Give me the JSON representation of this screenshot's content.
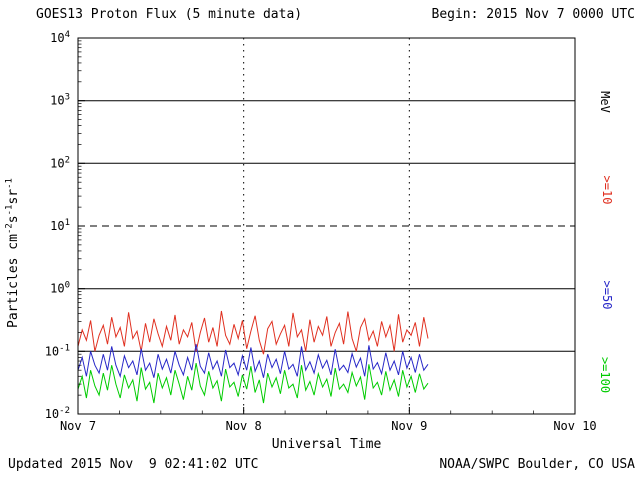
{
  "header": {
    "title": "GOES13 Proton Flux (5 minute data)",
    "begin": "Begin: 2015 Nov 7 0000 UTC"
  },
  "footer": {
    "updated": "Updated 2015 Nov  9 02:41:02 UTC",
    "credit": "NOAA/SWPC Boulder, CO USA"
  },
  "axes": {
    "x_title": "Universal Time",
    "unit": "MeV",
    "y_label": {
      "p1": "Particles cm",
      "s1": "-2",
      "p2": "s",
      "s2": "-1",
      "p3": "sr",
      "s3": "-1"
    }
  },
  "chart_data": {
    "type": "line",
    "title": "GOES13 Proton Flux (5 minute data)",
    "xlabel": "Universal Time",
    "ylabel": "Particles cm^-2 s^-1 sr^-1",
    "legend_position": "right-vertical",
    "background": "#ffffff",
    "x_axis": {
      "start": "2015 Nov 7 0000 UTC",
      "total_hours": 72,
      "tick_hours": [
        0,
        24,
        48,
        72
      ],
      "tick_labels": [
        "Nov 7",
        "Nov 8",
        "Nov 9",
        "Nov 10"
      ],
      "minor_tick_step_hours": 6,
      "dotted_gridline_hours": [
        24,
        48
      ]
    },
    "y_axis": {
      "scale": "log",
      "min": 0.01,
      "max": 10000,
      "tick_exponents": [
        4,
        3,
        2,
        1,
        0,
        -1,
        -2
      ],
      "solid_gridlines_at": [
        1000,
        100,
        1,
        0.1
      ],
      "dashed_gridline_at": 10
    },
    "data_end_hour": 50.7,
    "series": [
      {
        "name": ">=10 MeV proton flux",
        "label": ">=10",
        "color": "#e03020",
        "approx_range": [
          0.09,
          0.44
        ],
        "values": [
          0.12,
          0.22,
          0.15,
          0.31,
          0.1,
          0.18,
          0.26,
          0.13,
          0.35,
          0.17,
          0.24,
          0.12,
          0.42,
          0.16,
          0.21,
          0.1,
          0.28,
          0.14,
          0.33,
          0.19,
          0.12,
          0.25,
          0.15,
          0.38,
          0.13,
          0.22,
          0.17,
          0.29,
          0.1,
          0.2,
          0.34,
          0.14,
          0.24,
          0.12,
          0.44,
          0.18,
          0.13,
          0.27,
          0.16,
          0.31,
          0.11,
          0.21,
          0.37,
          0.15,
          0.09,
          0.23,
          0.3,
          0.13,
          0.19,
          0.26,
          0.12,
          0.41,
          0.17,
          0.22,
          0.1,
          0.32,
          0.14,
          0.25,
          0.18,
          0.36,
          0.12,
          0.2,
          0.28,
          0.13,
          0.43,
          0.16,
          0.1,
          0.24,
          0.33,
          0.15,
          0.21,
          0.12,
          0.3,
          0.17,
          0.26,
          0.1,
          0.39,
          0.14,
          0.22,
          0.18,
          0.29,
          0.12,
          0.35,
          0.16
        ]
      },
      {
        "name": ">=50 MeV proton flux",
        "label": ">=50",
        "color": "#2828c8",
        "approx_range": [
          0.038,
          0.13
        ],
        "values": [
          0.05,
          0.08,
          0.04,
          0.1,
          0.06,
          0.045,
          0.09,
          0.05,
          0.12,
          0.06,
          0.04,
          0.085,
          0.055,
          0.07,
          0.042,
          0.11,
          0.05,
          0.065,
          0.038,
          0.09,
          0.052,
          0.075,
          0.045,
          0.1,
          0.06,
          0.042,
          0.08,
          0.05,
          0.13,
          0.058,
          0.045,
          0.095,
          0.052,
          0.07,
          0.04,
          0.105,
          0.055,
          0.065,
          0.042,
          0.085,
          0.05,
          0.115,
          0.048,
          0.07,
          0.038,
          0.09,
          0.055,
          0.075,
          0.044,
          0.1,
          0.052,
          0.062,
          0.04,
          0.12,
          0.05,
          0.068,
          0.045,
          0.088,
          0.054,
          0.072,
          0.042,
          0.108,
          0.05,
          0.06,
          0.046,
          0.092,
          0.056,
          0.078,
          0.04,
          0.125,
          0.052,
          0.066,
          0.044,
          0.095,
          0.05,
          0.07,
          0.042,
          0.1,
          0.054,
          0.08,
          0.046,
          0.09,
          0.05,
          0.062
        ]
      },
      {
        "name": ">=100 MeV proton flux",
        "label": ">=100",
        "color": "#00cc00",
        "approx_range": [
          0.015,
          0.065
        ],
        "values": [
          0.025,
          0.04,
          0.018,
          0.05,
          0.028,
          0.02,
          0.045,
          0.024,
          0.06,
          0.03,
          0.018,
          0.042,
          0.026,
          0.035,
          0.016,
          0.055,
          0.025,
          0.032,
          0.015,
          0.045,
          0.026,
          0.038,
          0.02,
          0.05,
          0.03,
          0.017,
          0.04,
          0.024,
          0.065,
          0.028,
          0.02,
          0.048,
          0.026,
          0.034,
          0.016,
          0.052,
          0.027,
          0.032,
          0.019,
          0.042,
          0.025,
          0.058,
          0.022,
          0.035,
          0.015,
          0.045,
          0.027,
          0.038,
          0.021,
          0.05,
          0.026,
          0.03,
          0.018,
          0.06,
          0.024,
          0.033,
          0.02,
          0.044,
          0.027,
          0.036,
          0.019,
          0.054,
          0.025,
          0.03,
          0.022,
          0.046,
          0.028,
          0.039,
          0.017,
          0.062,
          0.026,
          0.032,
          0.02,
          0.048,
          0.024,
          0.035,
          0.019,
          0.05,
          0.027,
          0.04,
          0.022,
          0.044,
          0.025,
          0.031
        ]
      }
    ]
  }
}
